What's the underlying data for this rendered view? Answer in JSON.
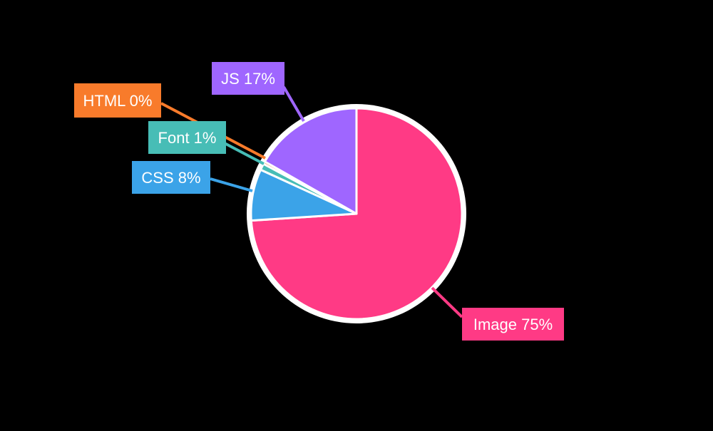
{
  "chart_data": {
    "type": "pie",
    "title": "",
    "slices": [
      {
        "label": "Image",
        "value": 75,
        "display": "Image 75%",
        "color": "#ff3a85"
      },
      {
        "label": "CSS",
        "value": 8,
        "display": "CSS 8%",
        "color": "#3ba3e8"
      },
      {
        "label": "Font",
        "value": 1,
        "display": "Font 1%",
        "color": "#47bdb6"
      },
      {
        "label": "HTML",
        "value": 0.4,
        "display": "HTML 0%",
        "color": "#f87b2b"
      },
      {
        "label": "JS",
        "value": 17,
        "display": "JS 17%",
        "color": "#9f66ff"
      }
    ],
    "colors": {
      "background": "#000000",
      "border": "#ffffff",
      "label_text": "#ffffff"
    }
  }
}
